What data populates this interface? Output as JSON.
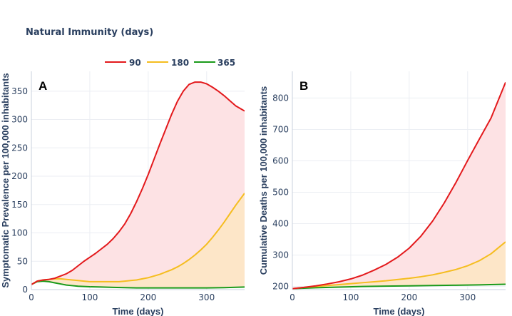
{
  "chart_data": {
    "type": "line",
    "title": "Natural Immunity (days)",
    "legend": {
      "placement": "top-center",
      "entries": [
        {
          "name": "90",
          "color": "#e3191c"
        },
        {
          "name": "180",
          "color": "#f5bd1f"
        },
        {
          "name": "365",
          "color": "#1a9a1a"
        }
      ]
    },
    "panels": [
      {
        "label": "A",
        "xlabel": "Time (days)",
        "ylabel": "Symptomatic Prevalence per 100,000 inhabitants",
        "xlim": [
          0,
          365
        ],
        "ylim": [
          0,
          385
        ],
        "xticks": [
          0,
          100,
          200,
          300
        ],
        "yticks": [
          0,
          50,
          100,
          150,
          200,
          250,
          300,
          350
        ],
        "grid": true,
        "fill_between": [
          {
            "upper": "90",
            "lower": "180",
            "color": "#fde2e4"
          },
          {
            "upper": "180",
            "lower": "365",
            "color": "#fde6c8"
          }
        ],
        "series": [
          {
            "name": "90",
            "color": "#e3191c",
            "x": [
              0,
              10,
              20,
              30,
              40,
              50,
              60,
              70,
              80,
              90,
              100,
              110,
              120,
              130,
              140,
              150,
              160,
              170,
              180,
              190,
              200,
              210,
              220,
              230,
              240,
              250,
              260,
              270,
              280,
              290,
              300,
              310,
              320,
              330,
              340,
              350,
              360,
              365
            ],
            "y": [
              9,
              15,
              17,
              18,
              20,
              24,
              28,
              34,
              42,
              50,
              57,
              64,
              72,
              80,
              90,
              102,
              116,
              134,
              155,
              178,
              203,
              230,
              257,
              283,
              309,
              332,
              350,
              362,
              366,
              366,
              363,
              357,
              350,
              342,
              333,
              324,
              318,
              315
            ]
          },
          {
            "name": "180",
            "color": "#f5bd1f",
            "x": [
              0,
              10,
              20,
              30,
              40,
              50,
              60,
              70,
              80,
              90,
              100,
              110,
              120,
              130,
              140,
              150,
              160,
              170,
              180,
              190,
              200,
              210,
              220,
              230,
              240,
              250,
              260,
              270,
              280,
              290,
              300,
              310,
              320,
              330,
              340,
              350,
              360,
              365
            ],
            "y": [
              9,
              15,
              17,
              18,
              19,
              19,
              18,
              17,
              16,
              15,
              14,
              14,
              14,
              14,
              14,
              14,
              15,
              16,
              17,
              19,
              21,
              24,
              27,
              31,
              35,
              40,
              46,
              53,
              61,
              70,
              80,
              92,
              105,
              119,
              134,
              149,
              163,
              170
            ]
          },
          {
            "name": "365",
            "color": "#1a9a1a",
            "x": [
              0,
              10,
              20,
              30,
              40,
              50,
              60,
              70,
              80,
              90,
              100,
              120,
              140,
              160,
              180,
              200,
              250,
              300,
              330,
              365
            ],
            "y": [
              9,
              14,
              15,
              14,
              12,
              10,
              8,
              7,
              6,
              5.5,
              5,
              4.5,
              4,
              3.5,
              3,
              3,
              3,
              3,
              3.5,
              4.5
            ]
          }
        ]
      },
      {
        "label": "B",
        "xlabel": "Time (days)",
        "ylabel": "Cumulative Deaths per 100,000 inhabitants",
        "xlim": [
          0,
          365
        ],
        "ylim": [
          190,
          885
        ],
        "xticks": [
          0,
          100,
          200,
          300
        ],
        "yticks": [
          200,
          300,
          400,
          500,
          600,
          700,
          800
        ],
        "grid": true,
        "fill_between": [
          {
            "upper": "90",
            "lower": "180",
            "color": "#fde2e4"
          },
          {
            "upper": "180",
            "lower": "365",
            "color": "#fde6c8"
          }
        ],
        "series": [
          {
            "name": "90",
            "color": "#e3191c",
            "x": [
              0,
              20,
              40,
              60,
              80,
              100,
              120,
              140,
              160,
              180,
              200,
              220,
              240,
              260,
              280,
              300,
              320,
              340,
              365
            ],
            "y": [
              193,
              197,
              202,
              208,
              215,
              224,
              236,
              252,
              270,
              293,
              322,
              360,
              408,
              466,
              531,
              601,
              669,
              736,
              850
            ]
          },
          {
            "name": "180",
            "color": "#f5bd1f",
            "x": [
              0,
              20,
              40,
              60,
              80,
              100,
              120,
              140,
              160,
              180,
              200,
              220,
              240,
              260,
              280,
              300,
              320,
              340,
              365
            ],
            "y": [
              193,
              197,
              200,
              203,
              206,
              209,
              212,
              215,
              218,
              222,
              226,
              231,
              237,
              245,
              254,
              266,
              282,
              304,
              342
            ]
          },
          {
            "name": "365",
            "color": "#1a9a1a",
            "x": [
              0,
              40,
              80,
              120,
              160,
              200,
              240,
              280,
              320,
              365
            ],
            "y": [
              193,
              196,
              198,
              200,
              201,
              202,
              203,
              204,
              205,
              207
            ]
          }
        ]
      }
    ]
  }
}
